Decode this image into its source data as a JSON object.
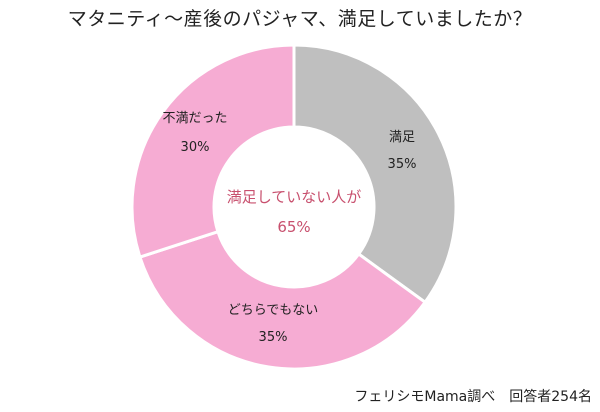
{
  "title": "マタニティ～産後のパジャマ、満足していましたか？",
  "source": "フェリシモMama調べ　回答者254名",
  "colors": {
    "gray": "#bfbfbf",
    "pink": "#f6acd3",
    "center_text": "#c8506e"
  },
  "chart_data": {
    "type": "pie",
    "variant": "donut",
    "start": "top",
    "direction": "clockwise",
    "slices": [
      {
        "label": "満足",
        "value": 35,
        "value_label": "35%",
        "color": "#bfbfbf"
      },
      {
        "label": "どちらでもない",
        "value": 35,
        "value_label": "35%",
        "color": "#f6acd3"
      },
      {
        "label": "不満だった",
        "value": 30,
        "value_label": "30%",
        "color": "#f6acd3"
      }
    ],
    "center_annotation": {
      "line1": "満足していない人が",
      "line2": "65%"
    }
  }
}
